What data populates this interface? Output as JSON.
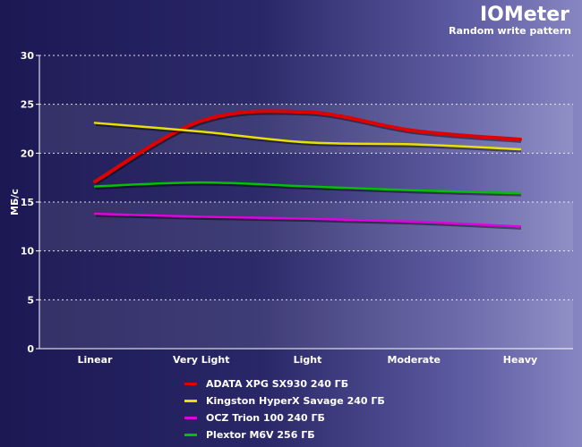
{
  "header": {
    "title": "IOMeter",
    "subtitle": "Random write pattern"
  },
  "chart_data": {
    "type": "line",
    "title": "IOMeter",
    "subtitle": "Random write pattern",
    "xlabel": "",
    "ylabel": "МБ/с",
    "ylim": [
      0,
      30
    ],
    "yticks": [
      0,
      5,
      10,
      15,
      20,
      25,
      30
    ],
    "grid": true,
    "legend_position": "bottom",
    "categories": [
      "Linear",
      "Very Light",
      "Light",
      "Moderate",
      "Heavy"
    ],
    "series": [
      {
        "name": "ADATA XPG SX930 240 ГБ",
        "color": "#e00000",
        "values": [
          17.1,
          23.3,
          24.2,
          22.3,
          21.4
        ]
      },
      {
        "name": "Kingston HyperX Savage 240 ГБ",
        "color": "#e8e000",
        "values": [
          23.1,
          22.2,
          21.1,
          20.9,
          20.4
        ]
      },
      {
        "name": "OCZ Trion 100 240 ГБ",
        "color": "#e000e0",
        "values": [
          13.8,
          13.5,
          13.3,
          13.0,
          12.5
        ]
      },
      {
        "name": "Plextor M6V  256 ГБ",
        "color": "#00c000",
        "values": [
          16.6,
          17.0,
          16.6,
          16.2,
          15.9
        ]
      }
    ]
  }
}
